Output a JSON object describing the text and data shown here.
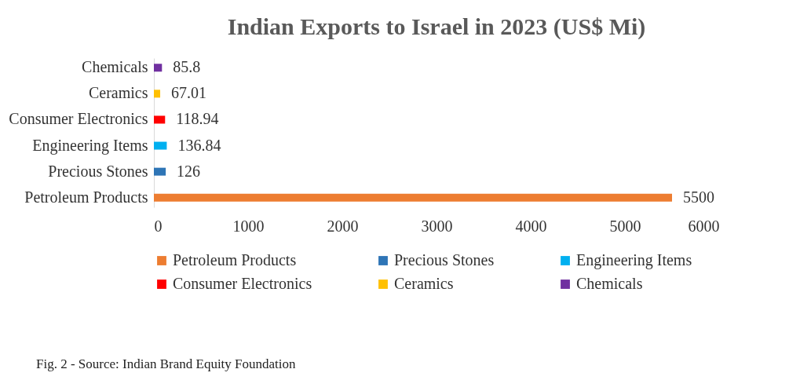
{
  "chart_data": {
    "type": "bar",
    "orientation": "horizontal",
    "title": "Indian Exports to Israel in 2023 (US$ Mi)",
    "categories": [
      "Chemicals",
      "Ceramics",
      "Consumer Electronics",
      "Engineering Items",
      "Precious Stones",
      "Petroleum Products"
    ],
    "series": [
      {
        "name": "Petroleum Products",
        "color": "#ed7d31",
        "values": [
          null,
          null,
          null,
          null,
          null,
          5500
        ]
      },
      {
        "name": "Precious Stones",
        "color": "#2e75b6",
        "values": [
          null,
          null,
          null,
          null,
          126,
          null
        ]
      },
      {
        "name": "Engineering Items",
        "color": "#00b0f0",
        "values": [
          null,
          null,
          null,
          136.84,
          null,
          null
        ]
      },
      {
        "name": "Consumer Electronics",
        "color": "#ff0000",
        "values": [
          null,
          null,
          118.94,
          null,
          null,
          null
        ]
      },
      {
        "name": "Ceramics",
        "color": "#ffc000",
        "values": [
          null,
          67.01,
          null,
          null,
          null,
          null
        ]
      },
      {
        "name": "Chemicals",
        "color": "#7030a0",
        "values": [
          85.8,
          null,
          null,
          null,
          null,
          null
        ]
      }
    ],
    "xlim": [
      0,
      6000
    ],
    "xticks": [
      0,
      1000,
      2000,
      3000,
      4000,
      5000,
      6000
    ],
    "data_labels": true,
    "legend": "bottom",
    "grid": false,
    "annotations": [
      "Fig. 2 - Source: Indian Brand Equity Foundation"
    ]
  }
}
